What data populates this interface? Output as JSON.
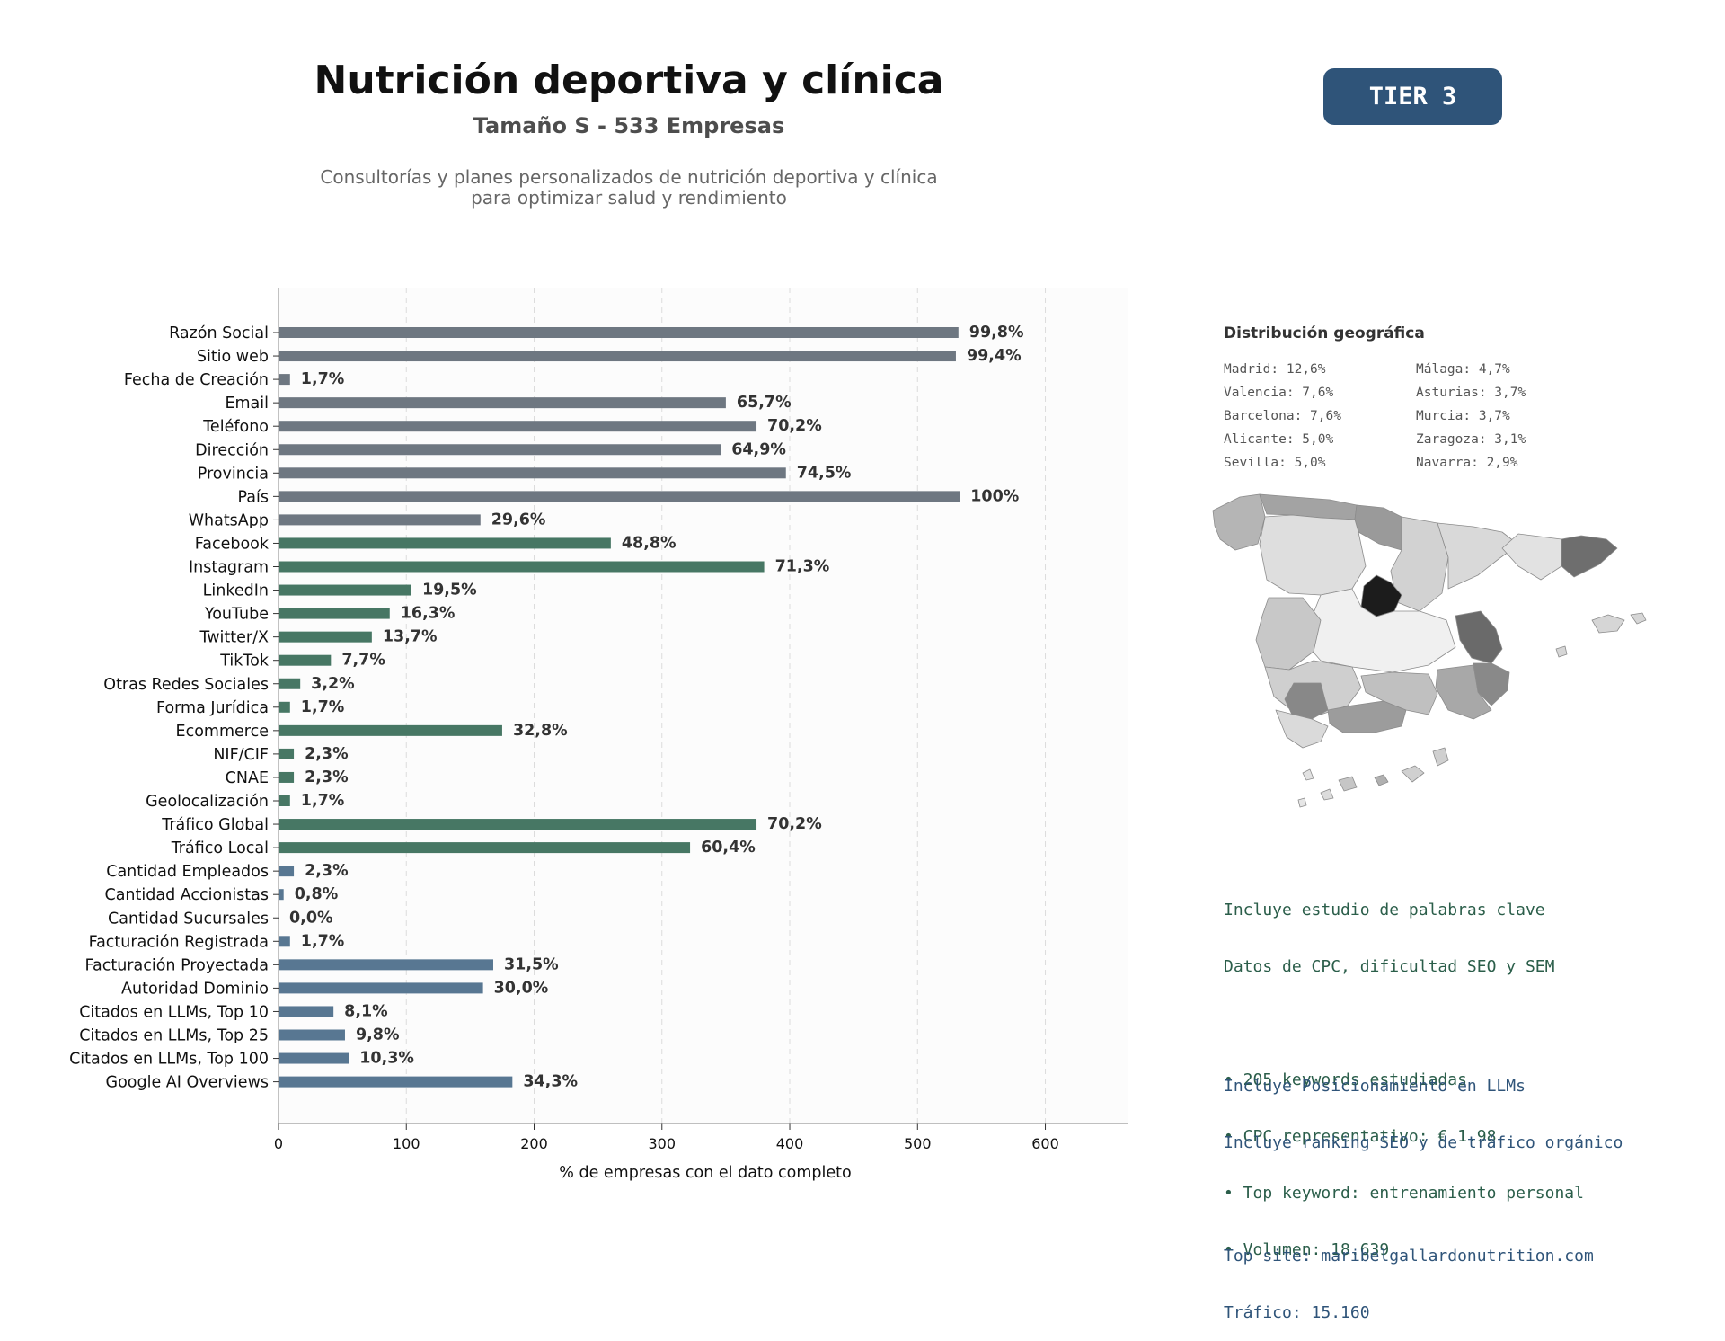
{
  "header": {
    "title": "Nutrición deportiva y clínica",
    "subtitle": "Tamaño S - 533 Empresas",
    "description_lines": [
      "Consultorías y planes personalizados de nutrición deportiva y clínica",
      "para optimizar salud y rendimiento"
    ],
    "tier_badge": "TIER 3"
  },
  "colors": {
    "group1": "#6e7781",
    "group2": "#477764",
    "group3": "#587792",
    "badge": "#2f5479",
    "seo_text": "#2b5e4a",
    "llm_text": "#2f5479"
  },
  "chart_data": {
    "type": "bar",
    "orientation": "horizontal",
    "xlabel": "% de empresas con el dato completo",
    "xlim": [
      0,
      665
    ],
    "xticks": [
      0,
      100,
      200,
      300,
      400,
      500,
      600
    ],
    "grid": "vertical dashed",
    "categories": [
      "Razón Social",
      "Sitio web",
      "Fecha de Creación",
      "Email",
      "Teléfono",
      "Dirección",
      "Provincia",
      "País",
      "WhatsApp",
      "Facebook",
      "Instagram",
      "LinkedIn",
      "YouTube",
      "Twitter/X",
      "TikTok",
      "Otras Redes Sociales",
      "Forma Jurídica",
      "Ecommerce",
      "NIF/CIF",
      "CNAE",
      "Geolocalización",
      "Tráfico Global",
      "Tráfico Local",
      "Cantidad Empleados",
      "Cantidad Accionistas",
      "Cantidad Sucursales",
      "Facturación Registrada",
      "Facturación Proyectada",
      "Autoridad Dominio",
      "Citados en LLMs, Top 10",
      "Citados en LLMs, Top 25",
      "Citados en LLMs, Top 100",
      "Google AI Overviews"
    ],
    "values": [
      532,
      530,
      9,
      350,
      374,
      346,
      397,
      533,
      158,
      260,
      380,
      104,
      87,
      73,
      41,
      17,
      9,
      175,
      12,
      12,
      9,
      374,
      322,
      12,
      4,
      0,
      9,
      168,
      160,
      43,
      52,
      55,
      183
    ],
    "labels": [
      "99,8%",
      "99,4%",
      "1,7%",
      "65,7%",
      "70,2%",
      "64,9%",
      "74,5%",
      "100%",
      "29,6%",
      "48,8%",
      "71,3%",
      "19,5%",
      "16,3%",
      "13,7%",
      "7,7%",
      "3,2%",
      "1,7%",
      "32,8%",
      "2,3%",
      "2,3%",
      "1,7%",
      "70,2%",
      "60,4%",
      "2,3%",
      "0,8%",
      "0,0%",
      "1,7%",
      "31,5%",
      "30,0%",
      "8,1%",
      "9,8%",
      "10,3%",
      "34,3%"
    ],
    "groups": [
      1,
      1,
      1,
      1,
      1,
      1,
      1,
      1,
      1,
      2,
      2,
      2,
      2,
      2,
      2,
      2,
      2,
      2,
      2,
      2,
      2,
      2,
      2,
      3,
      3,
      3,
      3,
      3,
      3,
      3,
      3,
      3,
      3
    ]
  },
  "geo": {
    "title": "Distribución geográfica",
    "col1": [
      "Madrid: 12,6%",
      "Valencia: 7,6%",
      "Barcelona: 7,6%",
      "Alicante: 5,0%",
      "Sevilla: 5,0%"
    ],
    "col2": [
      "Málaga: 4,7%",
      "Asturias: 3,7%",
      "Murcia: 3,7%",
      "Zaragoza: 3,1%",
      "Navarra: 2,9%"
    ]
  },
  "seo_info": {
    "lines": [
      "Incluye estudio de palabras clave",
      "Datos de CPC, dificultad SEO y SEM",
      "",
      "• 205 keywords estudiadas",
      "• CPC representativo: € 1.98",
      "• Top keyword: entrenamiento personal",
      "• Volumen: 18.639"
    ]
  },
  "llm_info": {
    "lines": [
      "Incluye Posicionamiento en LLMs",
      "Incluye ranking SEO y de tráfico orgánico",
      "",
      "Top site: maribelgallardonutrition.com",
      "Tráfico: 15.160"
    ]
  }
}
